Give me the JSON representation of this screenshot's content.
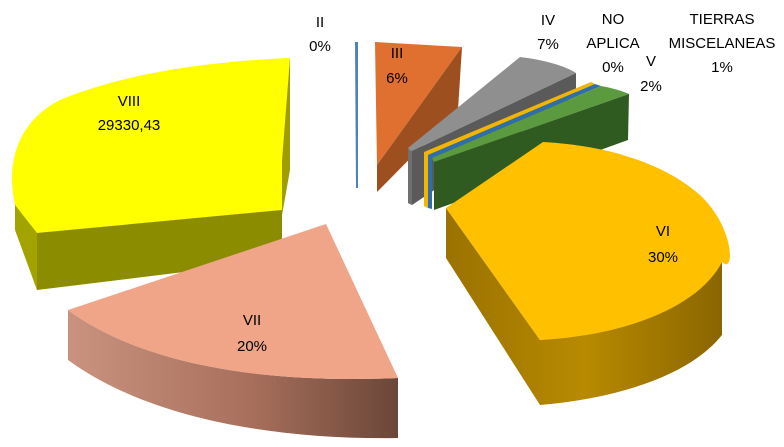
{
  "chart_data": {
    "type": "pie",
    "style": "3d-exploded",
    "title": "",
    "slices": [
      {
        "name": "II",
        "label": "0%",
        "percent": 0,
        "color": "#4f81bd"
      },
      {
        "name": "III",
        "label": "6%",
        "percent": 6,
        "color": "#e0702f"
      },
      {
        "name": "IV",
        "label": "7%",
        "percent": 7,
        "color": "#8f8f8f"
      },
      {
        "name": "NO APLICA",
        "label": "0%",
        "percent": 0,
        "color": "#f2b600"
      },
      {
        "name": "V",
        "label": "2%",
        "percent": 2,
        "color": "#5b9a3f"
      },
      {
        "name": "TIERRAS MISCELANEAS",
        "label": "1%",
        "percent": 1,
        "color": "#2f6ea8"
      },
      {
        "name": "VI",
        "label": "30%",
        "percent": 30,
        "color": "#ffc000"
      },
      {
        "name": "VII",
        "label": "20%",
        "percent": 20,
        "color": "#f0a488"
      },
      {
        "name": "VIII",
        "label": "29330,43",
        "percent": 34,
        "color": "#ffff00"
      }
    ]
  }
}
